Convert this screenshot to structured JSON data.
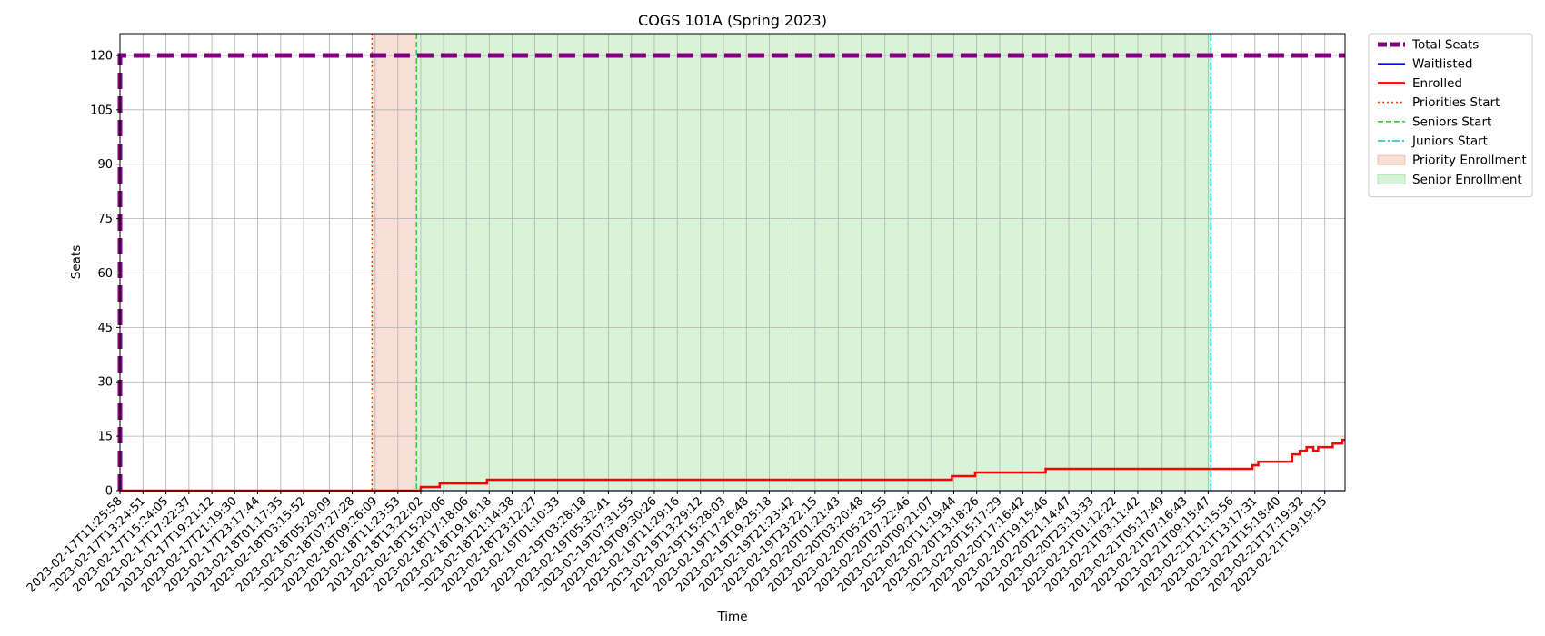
{
  "chart_data": {
    "type": "line",
    "title": "COGS 101A (Spring 2023)",
    "xlabel": "Time",
    "ylabel": "Seats",
    "ylim": [
      0,
      126
    ],
    "y_ticks": [
      0,
      15,
      30,
      45,
      60,
      75,
      90,
      105,
      120
    ],
    "x_ticks": [
      "2023-02-17T11:25:58",
      "2023-02-17T13:24:51",
      "2023-02-17T15:24:05",
      "2023-02-17T17:22:37",
      "2023-02-17T19:21:12",
      "2023-02-17T21:19:30",
      "2023-02-17T23:17:44",
      "2023-02-18T01:17:35",
      "2023-02-18T03:15:52",
      "2023-02-18T05:29:09",
      "2023-02-18T07:27:28",
      "2023-02-18T09:26:09",
      "2023-02-18T11:23:53",
      "2023-02-18T13:22:02",
      "2023-02-18T15:20:06",
      "2023-02-18T17:18:06",
      "2023-02-18T19:16:18",
      "2023-02-18T21:14:38",
      "2023-02-18T23:12:27",
      "2023-02-19T01:10:33",
      "2023-02-19T03:28:18",
      "2023-02-19T05:32:41",
      "2023-02-19T07:31:55",
      "2023-02-19T09:30:26",
      "2023-02-19T11:29:16",
      "2023-02-19T13:29:12",
      "2023-02-19T15:28:03",
      "2023-02-19T17:26:48",
      "2023-02-19T19:25:18",
      "2023-02-19T21:23:42",
      "2023-02-19T23:22:15",
      "2023-02-20T01:21:43",
      "2023-02-20T03:20:48",
      "2023-02-20T05:23:55",
      "2023-02-20T07:22:46",
      "2023-02-20T09:21:07",
      "2023-02-20T11:19:44",
      "2023-02-20T13:18:26",
      "2023-02-20T15:17:29",
      "2023-02-20T17:16:42",
      "2023-02-20T19:15:46",
      "2023-02-20T21:14:47",
      "2023-02-20T23:13:33",
      "2023-02-21T01:12:22",
      "2023-02-21T03:11:42",
      "2023-02-21T05:17:49",
      "2023-02-21T07:16:43",
      "2023-02-21T09:15:47",
      "2023-02-21T11:15:56",
      "2023-02-21T13:17:31",
      "2023-02-21T15:18:40",
      "2023-02-21T17:19:32",
      "2023-02-21T19:19:15"
    ],
    "x_range": [
      "2023-02-17T11:25:58",
      "2023-02-21T21:04:00"
    ],
    "grid": true,
    "legend_position": "outside top-right",
    "series": [
      {
        "name": "Total Seats",
        "color": "#800080",
        "style": "dashed-thick",
        "points": [
          [
            "2023-02-17T11:25:58",
            0
          ],
          [
            "2023-02-17T11:25:58",
            120
          ],
          [
            "2023-02-21T21:04:00",
            120
          ]
        ]
      },
      {
        "name": "Waitlisted",
        "color": "#0000ff",
        "style": "solid",
        "points": [
          [
            "2023-02-17T11:25:58",
            0
          ],
          [
            "2023-02-21T21:04:00",
            0
          ]
        ]
      },
      {
        "name": "Enrolled",
        "color": "#ff0000",
        "style": "solid",
        "points": [
          [
            "2023-02-17T11:25:58",
            0
          ],
          [
            "2023-02-18T13:22:00",
            0
          ],
          [
            "2023-02-18T13:22:00",
            1
          ],
          [
            "2023-02-18T15:00:00",
            1
          ],
          [
            "2023-02-18T15:00:00",
            2
          ],
          [
            "2023-02-18T19:05:00",
            2
          ],
          [
            "2023-02-18T19:05:00",
            3
          ],
          [
            "2023-02-20T11:10:00",
            3
          ],
          [
            "2023-02-20T11:10:00",
            4
          ],
          [
            "2023-02-20T13:10:00",
            4
          ],
          [
            "2023-02-20T13:10:00",
            5
          ],
          [
            "2023-02-20T19:15:00",
            5
          ],
          [
            "2023-02-20T19:15:00",
            6
          ],
          [
            "2023-02-21T13:05:00",
            6
          ],
          [
            "2023-02-21T13:05:00",
            7
          ],
          [
            "2023-02-21T13:35:00",
            7
          ],
          [
            "2023-02-21T13:35:00",
            8
          ],
          [
            "2023-02-21T16:30:00",
            8
          ],
          [
            "2023-02-21T16:30:00",
            10
          ],
          [
            "2023-02-21T17:10:00",
            10
          ],
          [
            "2023-02-21T17:10:00",
            11
          ],
          [
            "2023-02-21T17:45:00",
            11
          ],
          [
            "2023-02-21T17:45:00",
            12
          ],
          [
            "2023-02-21T18:20:00",
            12
          ],
          [
            "2023-02-21T18:20:00",
            11
          ],
          [
            "2023-02-21T18:45:00",
            11
          ],
          [
            "2023-02-21T18:45:00",
            12
          ],
          [
            "2023-02-21T20:00:00",
            12
          ],
          [
            "2023-02-21T20:00:00",
            13
          ],
          [
            "2023-02-21T20:50:00",
            13
          ],
          [
            "2023-02-21T20:50:00",
            14
          ],
          [
            "2023-02-21T21:04:00",
            14
          ]
        ]
      }
    ],
    "vertical_lines": [
      {
        "name": "Priorities Start",
        "x": "2023-02-18T09:10:00",
        "color": "#ff4500",
        "style": "dotted"
      },
      {
        "name": "Seniors Start",
        "x": "2023-02-18T13:00:00",
        "color": "#32cd32",
        "style": "dashed"
      },
      {
        "name": "Juniors Start",
        "x": "2023-02-21T09:30:00",
        "color": "#00bfbf",
        "style": "dashdot"
      }
    ],
    "spans": [
      {
        "name": "Priority Enrollment",
        "from": "2023-02-18T09:10:00",
        "to": "2023-02-18T13:00:00",
        "color": "#e9967a",
        "opacity": 0.3
      },
      {
        "name": "Senior Enrollment",
        "from": "2023-02-18T13:00:00",
        "to": "2023-02-21T09:30:00",
        "color": "#7ed67e",
        "opacity": 0.3
      }
    ]
  }
}
